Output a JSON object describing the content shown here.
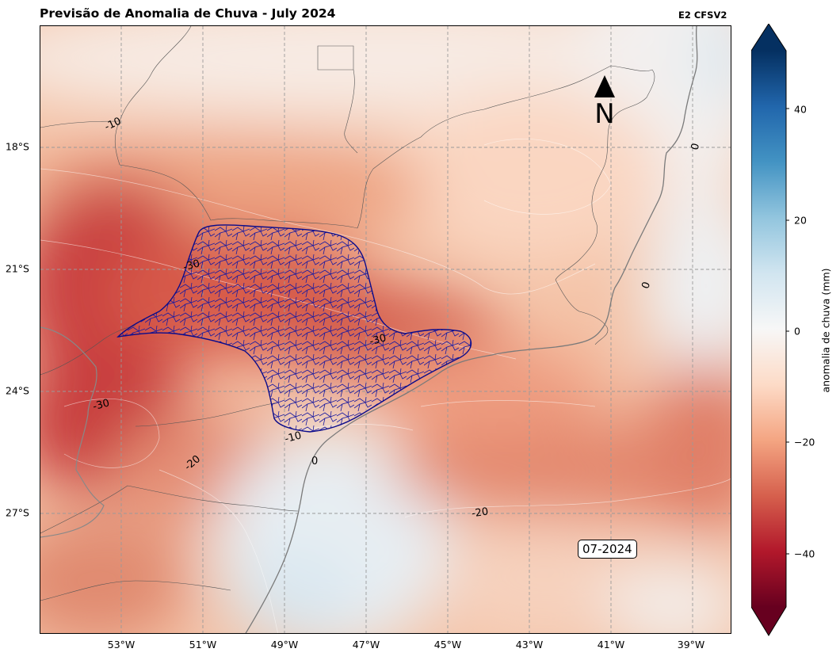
{
  "title": "Previsão de Anomalia de Chuva - July 2024",
  "model_label": "E2 CFSV2",
  "north_label": "N",
  "date_badge": "07-2024",
  "map": {
    "lon_ticks": [
      "53°W",
      "51°W",
      "49°W",
      "47°W",
      "45°W",
      "43°W",
      "41°W",
      "39°W"
    ],
    "lat_ticks": [
      "18°S",
      "21°S",
      "24°S",
      "27°S"
    ],
    "grid": true,
    "highlighted_region": "São Paulo state municipalities",
    "contour_labels": [
      "-10",
      "0",
      "-30",
      "0",
      "-30",
      "-30",
      "-10",
      "-20",
      "0",
      "-20"
    ]
  },
  "colorbar": {
    "label": "anomalia de chuva (mm)",
    "ticks": [
      "40",
      "20",
      "0",
      "−20",
      "−40"
    ],
    "range": [
      -50,
      50
    ],
    "colormap": "RdBu",
    "extend": "both"
  },
  "colors": {
    "strong_negative": "#b2182b",
    "negative": "#ef8a62",
    "light_negative": "#fbd9c4",
    "neutral": "#f7f7f7",
    "positive": "#d1e5f0",
    "strong_positive": "#2166ac",
    "municipal_lines": "#1a1aa0"
  }
}
